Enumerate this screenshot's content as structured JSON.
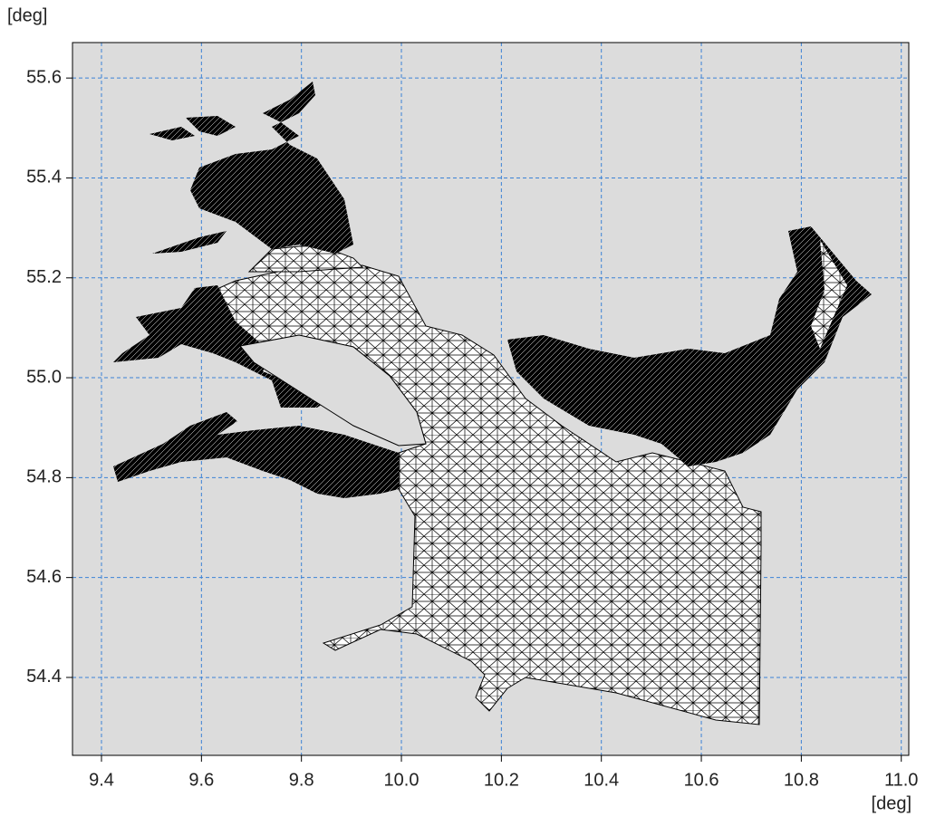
{
  "chart_data": {
    "type": "mesh",
    "x_label": "[deg]",
    "y_label": "[deg]",
    "xlim": [
      9.342,
      11.015
    ],
    "ylim": [
      54.244,
      55.671
    ],
    "xticks": [
      9.4,
      9.6,
      9.8,
      {
        "value": 10,
        "label": "10.0"
      },
      10.2,
      10.4,
      10.6,
      10.8,
      {
        "value": 11,
        "label": "11.0"
      }
    ],
    "yticks": [
      54.4,
      54.6,
      54.8,
      {
        "value": 55,
        "label": "55.0"
      },
      55.2,
      55.4,
      55.6
    ],
    "grid": true,
    "grid_color": "#3b82d6",
    "background": "#dcdcdc",
    "mesh_color": "#000000"
  }
}
